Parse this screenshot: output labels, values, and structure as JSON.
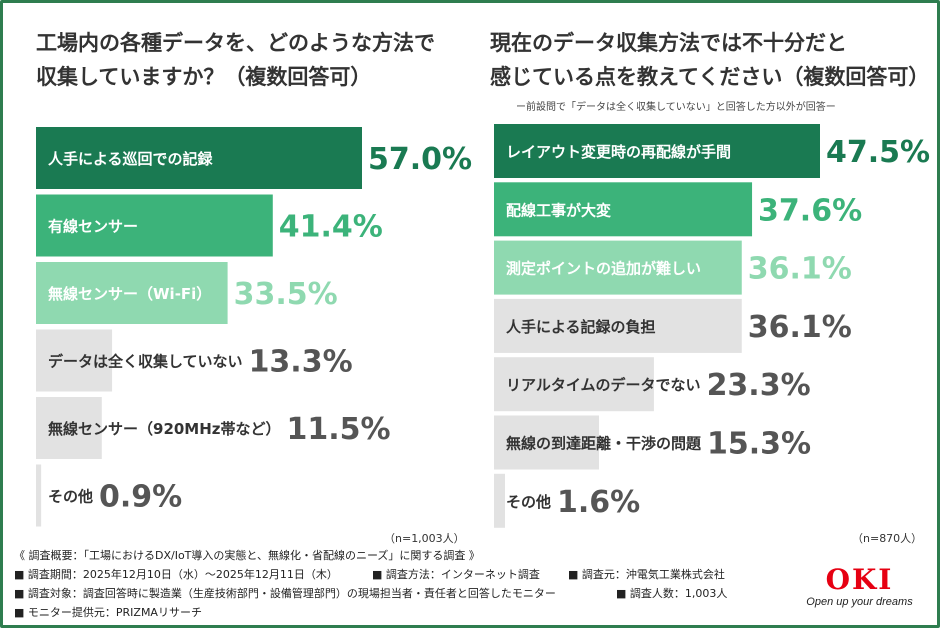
{
  "colors": {
    "dark": "#1a7a52",
    "mid": "#3cb37a",
    "light": "#8fd9b0",
    "gray": "#e2e2e2",
    "text_dark": "#333333",
    "value_gray": "#555555",
    "logo_red": "#e60012"
  },
  "left": {
    "title_lines": [
      "工場内の各種データを、どのような方法で",
      "収集していますか？（複数回答可）"
    ],
    "n_label": "（n=1,003人）"
  },
  "right": {
    "title_lines": [
      "現在のデータ収集方法では不十分だと",
      "感じている点を教えてください（複数回答可）"
    ],
    "note": "ー前設問で「データは全く収集していない」と回答した方以外が回答ー",
    "n_label": "（n=870人）"
  },
  "chart_data": [
    {
      "type": "bar",
      "orientation": "horizontal",
      "categories": [
        "人手による巡回での記録",
        "有線センサー",
        "無線センサー（Wi-Fi）",
        "データは全く収集していない",
        "無線センサー（920MHz帯など）",
        "その他"
      ],
      "values": [
        57.0,
        41.4,
        33.5,
        13.3,
        11.5,
        0.9
      ],
      "value_labels": [
        "57.0%",
        "41.4%",
        "33.5%",
        "13.3%",
        "11.5%",
        "0.9%"
      ],
      "bar_styles": [
        "dark",
        "mid",
        "light",
        "gray",
        "gray",
        "gray"
      ],
      "xlim": [
        0,
        57.0
      ]
    },
    {
      "type": "bar",
      "orientation": "horizontal",
      "categories": [
        "レイアウト変更時の再配線が手間",
        "配線工事が大変",
        "測定ポイントの追加が難しい",
        "人手による記録の負担",
        "リアルタイムのデータでない",
        "無線の到達距離・干渉の問題",
        "その他"
      ],
      "values": [
        47.5,
        37.6,
        36.1,
        36.1,
        23.3,
        15.3,
        1.6
      ],
      "value_labels": [
        "47.5%",
        "37.6%",
        "36.1%",
        "36.1%",
        "23.3%",
        "15.3%",
        "1.6%"
      ],
      "bar_styles": [
        "dark",
        "mid",
        "light",
        "gray",
        "gray",
        "gray",
        "gray"
      ],
      "xlim": [
        0,
        47.5
      ]
    }
  ],
  "footer": {
    "heading": "《 調査概要：「工場におけるDX/IoT導入の実態と、無線化・省配線のニーズ」に関する調査 》",
    "period": "■ 調査期間：2025年12月10日（水）〜2025年12月11日（木）",
    "method": "■ 調査方法：インターネット調査",
    "organizer": "■ 調査元：沖電気工業株式会社",
    "target": "■ 調査対象：調査回答時に製造業（生産技術部門・設備管理部門）の現場担当者・責任者と回答したモニター",
    "count": "■ 調査人数：1,003人",
    "provider": "■ モニター提供元：PRIZMAリサーチ"
  },
  "logo": {
    "mark": "OKI",
    "tagline": "Open up your dreams"
  }
}
